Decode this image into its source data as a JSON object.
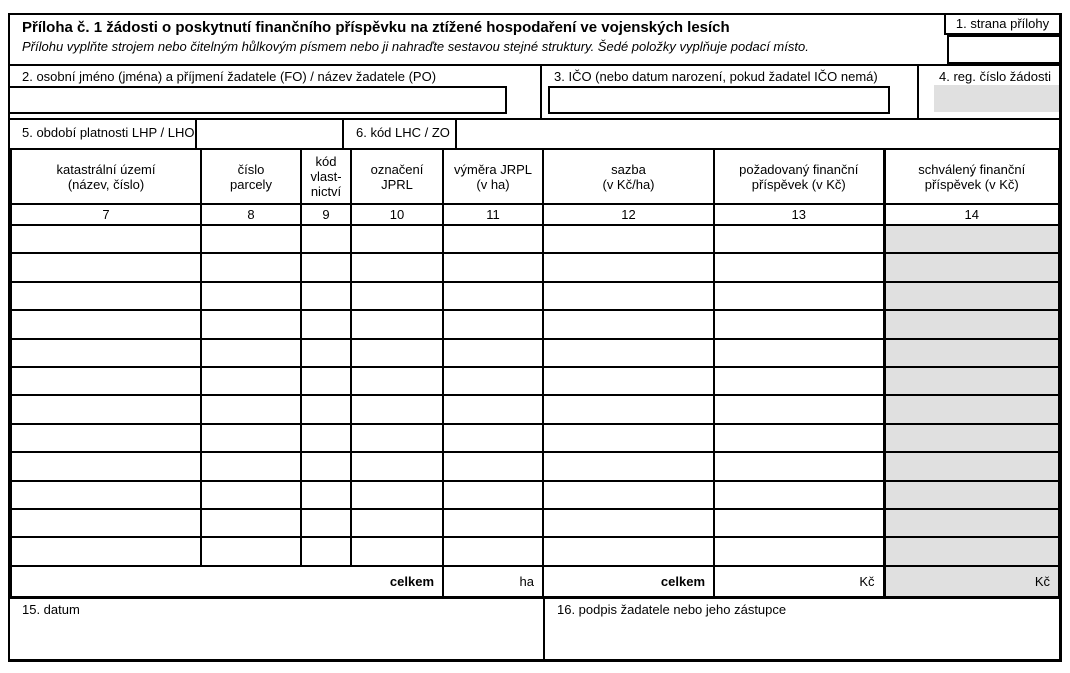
{
  "form": {
    "title": "Příloha č. 1 žádosti o poskytnutí finančního příspěvku na ztížené hospodaření ve vojenských lesích",
    "subtitle": "Přílohu vyplňte strojem nebo čitelným hůlkovým písmem nebo ji nahraďte sestavou stejné struktury. Šedé položky vyplňuje podací místo.",
    "page_label": "1. strana přílohy",
    "field2_label": "2. osobní jméno (jména) a příjmení žadatele (FO) / název žadatele (PO)",
    "field3_label": "3. IČO (nebo datum narození, pokud žadatel IČO nemá)",
    "field4_label": "4. reg. číslo žádosti",
    "field5_label": "5. období platnosti LHP / LHO",
    "field6_label": "6. kód LHC / ZO",
    "field15_label": "15. datum",
    "field16_label": "16. podpis žadatele nebo jeho zástupce"
  },
  "table": {
    "columns": [
      {
        "header": "katastrální území\n(název, číslo)",
        "number": "7"
      },
      {
        "header": "číslo\nparcely",
        "number": "8"
      },
      {
        "header": "kód\nvlast-\nnictví",
        "number": "9"
      },
      {
        "header": "označení\nJPRL",
        "number": "10"
      },
      {
        "header": "výměra JRPL\n(v ha)",
        "number": "11"
      },
      {
        "header": "sazba\n(v Kč/ha)",
        "number": "12"
      },
      {
        "header": "požadovaný finanční\npříspěvek (v Kč)",
        "number": "13"
      },
      {
        "header": "schválený finanční\npříspěvek (v Kč)",
        "number": "14"
      }
    ],
    "row_count": 12,
    "totals": {
      "celkem_left": "celkem",
      "ha": "ha",
      "celkem_right": "celkem",
      "kc": "Kč",
      "kc_approved": "Kč"
    }
  },
  "colors": {
    "shaded": "#e0e0e0",
    "line": "#000000"
  }
}
